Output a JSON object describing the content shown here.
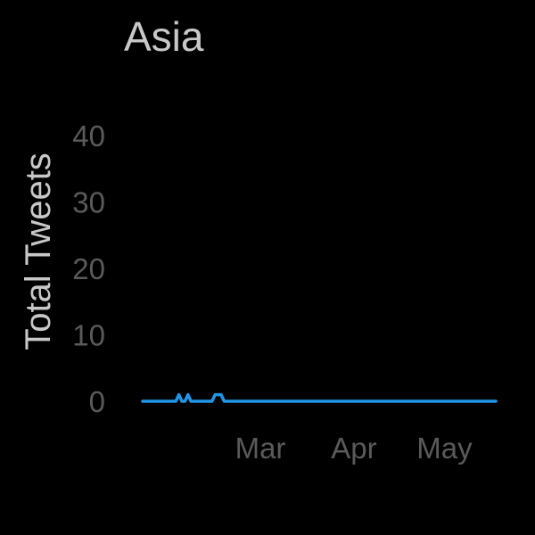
{
  "chart_data": {
    "type": "line",
    "title": "Asia",
    "xlabel": "",
    "ylabel": "Total Tweets",
    "ylim": [
      0,
      40
    ],
    "yticks": [
      0,
      10,
      20,
      30,
      40
    ],
    "xlim": [
      "2020-01-22",
      "2020-05-18"
    ],
    "xticks": [
      {
        "label": "Mar",
        "date": "2020-03-01"
      },
      {
        "label": "Apr",
        "date": "2020-04-01"
      },
      {
        "label": "May",
        "date": "2020-05-01"
      }
    ],
    "grid": false,
    "series": [
      {
        "color": "#2196e6",
        "x": [
          "2020-01-22",
          "2020-02-02",
          "2020-02-03",
          "2020-02-04",
          "2020-02-05",
          "2020-02-06",
          "2020-02-07",
          "2020-02-08",
          "2020-02-14",
          "2020-02-15",
          "2020-02-16",
          "2020-02-17",
          "2020-02-18",
          "2020-03-01",
          "2020-04-01",
          "2020-05-18"
        ],
        "values": [
          0,
          0,
          1,
          0,
          0,
          1,
          0,
          0,
          0,
          1,
          1,
          1,
          0,
          0,
          0,
          0
        ]
      }
    ]
  },
  "colors": {
    "background": "#000000",
    "title": "#c8c8c8",
    "tick": "#5a5a5a",
    "line": "#2196e6"
  }
}
